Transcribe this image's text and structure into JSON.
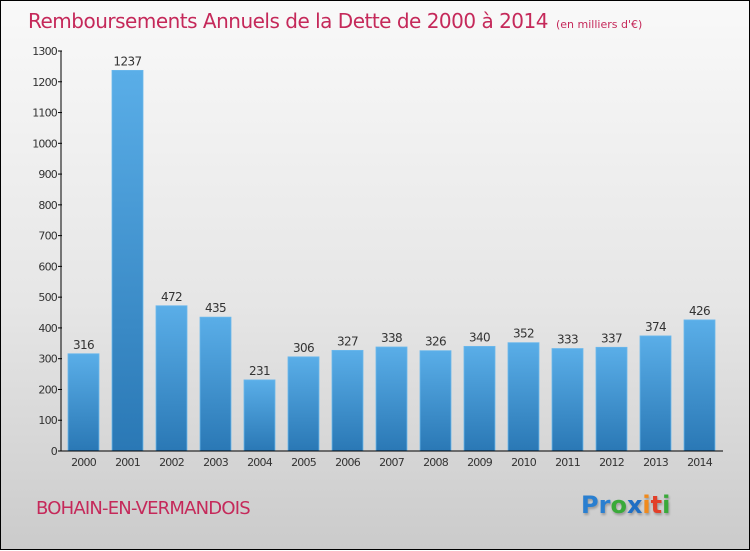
{
  "header": {
    "title": "Remboursements Annuels de la Dette de 2000 à 2014",
    "unit": "(en milliers d'€)"
  },
  "footer": {
    "town": "BOHAIN-EN-VERMANDOIS",
    "logo_letters": [
      {
        "char": "P",
        "color": "#2a7fd0"
      },
      {
        "char": "r",
        "color": "#2a7fd0"
      },
      {
        "char": "o",
        "color": "#3aaa3a"
      },
      {
        "char": "x",
        "color": "#1f6fc4"
      },
      {
        "char": "i",
        "color": "#f08a1c"
      },
      {
        "char": "t",
        "color": "#e2402a"
      },
      {
        "char": "i",
        "color": "#3aaa3a"
      }
    ]
  },
  "colors": {
    "accent": "#c5295a",
    "bar_top": "#5aaee8",
    "bar_bottom": "#2a78b5"
  },
  "chart_data": {
    "type": "bar",
    "title": "Remboursements Annuels de la Dette de 2000 à 2014",
    "subtitle": "(en milliers d'€)",
    "xlabel": "",
    "ylabel": "",
    "categories": [
      "2000",
      "2001",
      "2002",
      "2003",
      "2004",
      "2005",
      "2006",
      "2007",
      "2008",
      "2009",
      "2010",
      "2011",
      "2012",
      "2013",
      "2014"
    ],
    "values": [
      316,
      1237,
      472,
      435,
      231,
      306,
      327,
      338,
      326,
      340,
      352,
      333,
      337,
      374,
      426
    ],
    "ylim": [
      0,
      1300
    ],
    "yticks": [
      0,
      100,
      200,
      300,
      400,
      500,
      600,
      700,
      800,
      900,
      1000,
      1100,
      1200,
      1300
    ],
    "grid": false,
    "legend": "none"
  }
}
